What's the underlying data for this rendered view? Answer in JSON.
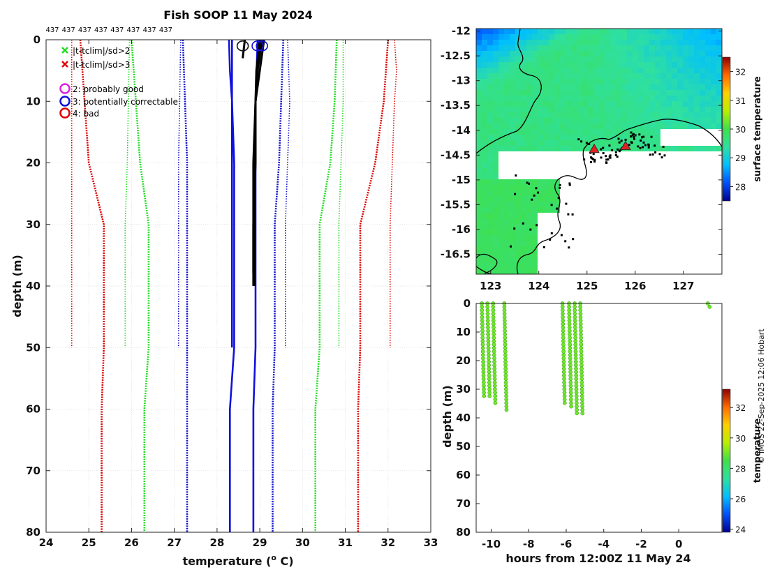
{
  "chart_data": [
    {
      "type": "line",
      "title": "Fish SOOP 11 May 2024",
      "xlabel": "temperature (",
      "xlabel_sup": "o",
      "xlabel_end": " C)",
      "ylabel": "depth (m)",
      "xlim": [
        24,
        33
      ],
      "ylim": [
        0,
        80
      ],
      "xticks": [
        24,
        25,
        26,
        27,
        28,
        29,
        30,
        31,
        32,
        33
      ],
      "yticks": [
        0,
        10,
        20,
        30,
        40,
        50,
        60,
        70,
        80
      ],
      "top_labels": [
        "437",
        "437",
        "437",
        "437",
        "437",
        "437",
        "437",
        "437"
      ],
      "legend": {
        "markers": [
          {
            "symbol": "x",
            "color": "#22dd22",
            "label": "|t-tclim|/sd>2"
          },
          {
            "symbol": "x",
            "color": "#dd0000",
            "label": "|t-tclim|/sd>3"
          }
        ],
        "flags": [
          {
            "color": "#dd22dd",
            "label": "2: probably good"
          },
          {
            "color": "#1111dd",
            "label": "3: potentially correctable"
          },
          {
            "color": "#dd0000",
            "label": "4: bad"
          }
        ]
      },
      "climatology_series": [
        {
          "name": "mean+3sd",
          "color": "#dd0000",
          "style": "dotted",
          "points": [
            [
              32.0,
              0
            ],
            [
              31.9,
              10
            ],
            [
              31.7,
              20
            ],
            [
              31.35,
              30
            ],
            [
              31.35,
              50
            ],
            [
              31.3,
              60
            ],
            [
              31.3,
              80
            ]
          ]
        },
        {
          "name": "mean-3sd",
          "color": "#dd0000",
          "style": "dotted",
          "points": [
            [
              24.8,
              0
            ],
            [
              24.9,
              10
            ],
            [
              25.0,
              20
            ],
            [
              25.35,
              30
            ],
            [
              25.35,
              50
            ],
            [
              25.3,
              60
            ],
            [
              25.3,
              80
            ]
          ]
        },
        {
          "name": "mean+2sd",
          "color": "#22dd22",
          "style": "dotted",
          "points": [
            [
              30.8,
              0
            ],
            [
              30.75,
              10
            ],
            [
              30.65,
              20
            ],
            [
              30.4,
              30
            ],
            [
              30.4,
              50
            ],
            [
              30.3,
              60
            ],
            [
              30.3,
              80
            ]
          ]
        },
        {
          "name": "mean-2sd",
          "color": "#22dd22",
          "style": "dotted",
          "points": [
            [
              26.0,
              0
            ],
            [
              26.1,
              10
            ],
            [
              26.2,
              20
            ],
            [
              26.4,
              30
            ],
            [
              26.4,
              50
            ],
            [
              26.3,
              60
            ],
            [
              26.3,
              80
            ]
          ]
        },
        {
          "name": "mean+1sd",
          "color": "#1111cc",
          "style": "dotted",
          "points": [
            [
              29.55,
              0
            ],
            [
              29.5,
              10
            ],
            [
              29.45,
              20
            ],
            [
              29.35,
              30
            ],
            [
              29.35,
              50
            ],
            [
              29.3,
              60
            ],
            [
              29.3,
              80
            ]
          ]
        },
        {
          "name": "mean-1sd",
          "color": "#1111cc",
          "style": "dotted",
          "points": [
            [
              27.2,
              0
            ],
            [
              27.25,
              10
            ],
            [
              27.3,
              20
            ],
            [
              27.3,
              30
            ],
            [
              27.3,
              50
            ],
            [
              27.3,
              60
            ],
            [
              27.3,
              80
            ]
          ]
        },
        {
          "name": "max",
          "color": "#dd0000",
          "style": "dotted_thin",
          "points": [
            [
              32.15,
              0
            ],
            [
              32.2,
              5
            ],
            [
              32.15,
              10
            ],
            [
              32.1,
              20
            ],
            [
              32.05,
              30
            ],
            [
              32.05,
              50
            ]
          ]
        },
        {
          "name": "min",
          "color": "#dd0000",
          "style": "dotted_thin",
          "points": [
            [
              24.6,
              0
            ],
            [
              24.6,
              30
            ],
            [
              24.6,
              50
            ]
          ]
        },
        {
          "name": "max2",
          "color": "#22dd22",
          "style": "dotted_thin",
          "points": [
            [
              30.95,
              0
            ],
            [
              30.95,
              10
            ],
            [
              30.9,
              20
            ],
            [
              30.85,
              30
            ],
            [
              30.85,
              50
            ]
          ]
        },
        {
          "name": "min2",
          "color": "#22dd22",
          "style": "dotted_thin",
          "points": [
            [
              25.95,
              0
            ],
            [
              25.9,
              20
            ],
            [
              25.85,
              30
            ],
            [
              25.85,
              50
            ]
          ]
        },
        {
          "name": "max1",
          "color": "#1111cc",
          "style": "dotted_thin",
          "points": [
            [
              29.65,
              0
            ],
            [
              29.7,
              10
            ],
            [
              29.65,
              20
            ],
            [
              29.6,
              30
            ],
            [
              29.6,
              50
            ]
          ]
        },
        {
          "name": "min1",
          "color": "#1111cc",
          "style": "dotted_thin",
          "points": [
            [
              27.15,
              0
            ],
            [
              27.1,
              20
            ],
            [
              27.1,
              30
            ],
            [
              27.1,
              50
            ]
          ]
        }
      ],
      "mean_series": [
        {
          "name": "clim-mean-a",
          "color": "#1111dd",
          "points": [
            [
              28.35,
              0
            ],
            [
              28.35,
              10
            ],
            [
              28.4,
              20
            ],
            [
              28.4,
              30
            ],
            [
              28.4,
              50
            ],
            [
              28.3,
              60
            ],
            [
              28.3,
              80
            ]
          ]
        },
        {
          "name": "clim-mean-b",
          "color": "#1111dd",
          "points": [
            [
              28.28,
              0
            ],
            [
              28.3,
              5
            ],
            [
              28.35,
              10
            ],
            [
              28.35,
              20
            ],
            [
              28.35,
              30
            ],
            [
              28.35,
              50
            ]
          ]
        },
        {
          "name": "clim-mean-c",
          "color": "#1111dd",
          "points": [
            [
              28.95,
              0
            ],
            [
              28.9,
              10
            ],
            [
              28.9,
              20
            ],
            [
              28.9,
              30
            ],
            [
              28.9,
              40
            ],
            [
              28.9,
              50
            ],
            [
              28.85,
              60
            ],
            [
              28.85,
              80
            ]
          ]
        }
      ],
      "profiles": [
        {
          "name": "profile-1",
          "color": "#000000",
          "points": [
            [
              29.1,
              0
            ],
            [
              29.0,
              5
            ],
            [
              28.9,
              10
            ],
            [
              28.9,
              20
            ],
            [
              28.85,
              30
            ],
            [
              28.85,
              40
            ]
          ]
        },
        {
          "name": "profile-2",
          "color": "#000000",
          "points": [
            [
              29.05,
              0
            ],
            [
              28.95,
              5
            ],
            [
              28.9,
              10
            ],
            [
              28.88,
              20
            ],
            [
              28.88,
              30
            ],
            [
              28.88,
              40
            ]
          ]
        },
        {
          "name": "profile-3",
          "color": "#000000",
          "points": [
            [
              29.0,
              0
            ],
            [
              28.92,
              5
            ],
            [
              28.9,
              10
            ],
            [
              28.85,
              20
            ],
            [
              28.85,
              30
            ],
            [
              28.85,
              38
            ]
          ]
        },
        {
          "name": "profile-4",
          "color": "#000000",
          "points": [
            [
              28.65,
              0
            ],
            [
              28.6,
              3
            ]
          ]
        }
      ],
      "flag_circles": [
        {
          "x": 28.6,
          "y": 1,
          "color": "#111111"
        },
        {
          "x": 28.95,
          "y": 1,
          "color": "#1111dd"
        },
        {
          "x": 29.05,
          "y": 1,
          "color": "#1111dd"
        }
      ]
    },
    {
      "type": "heatmap",
      "title": "",
      "xticks": [
        123,
        124,
        125,
        126,
        127
      ],
      "yticks": [
        -12,
        -12.5,
        -13,
        -13.5,
        -14,
        -14.5,
        -15,
        -15.5,
        -16,
        -16.5
      ],
      "xlim": [
        122.7,
        127.8
      ],
      "ylim": [
        -16.9,
        -11.95
      ],
      "colorbar": {
        "label": "surface temperature",
        "ticks": [
          28,
          29,
          30,
          31,
          32
        ],
        "range": [
          27.5,
          32.5
        ]
      },
      "stations": [
        {
          "lon": 125.15,
          "lat": -14.38,
          "color": "#dd2222"
        },
        {
          "lon": 125.8,
          "lat": -14.32,
          "color": "#dd2222"
        }
      ]
    },
    {
      "type": "scatter",
      "xlabel": "hours from 12:00Z 11 May 24",
      "ylabel": "depth (m)",
      "xlim": [
        -10.8,
        2.3
      ],
      "ylim": [
        0,
        80
      ],
      "xticks": [
        -10,
        -8,
        -6,
        -4,
        -2,
        0
      ],
      "yticks": [
        0,
        10,
        20,
        30,
        40,
        50,
        60,
        70,
        80
      ],
      "colorbar": {
        "label": "temperature",
        "ticks": [
          24,
          26,
          28,
          30,
          32
        ],
        "range": [
          23.8,
          33.2
        ]
      },
      "casts": [
        {
          "hour": -10.5,
          "max_depth": 33
        },
        {
          "hour": -10.2,
          "max_depth": 33
        },
        {
          "hour": -9.9,
          "max_depth": 35
        },
        {
          "hour": -9.3,
          "max_depth": 38
        },
        {
          "hour": -6.2,
          "max_depth": 35
        },
        {
          "hour": -5.85,
          "max_depth": 37
        },
        {
          "hour": -5.55,
          "max_depth": 39
        },
        {
          "hour": -5.25,
          "max_depth": 39
        },
        {
          "hour": 1.55,
          "max_depth": 1.5
        }
      ],
      "point_temperature": 29.0
    }
  ],
  "credit": "© IMOS 22-Sep-2025 12:06 Hobart"
}
